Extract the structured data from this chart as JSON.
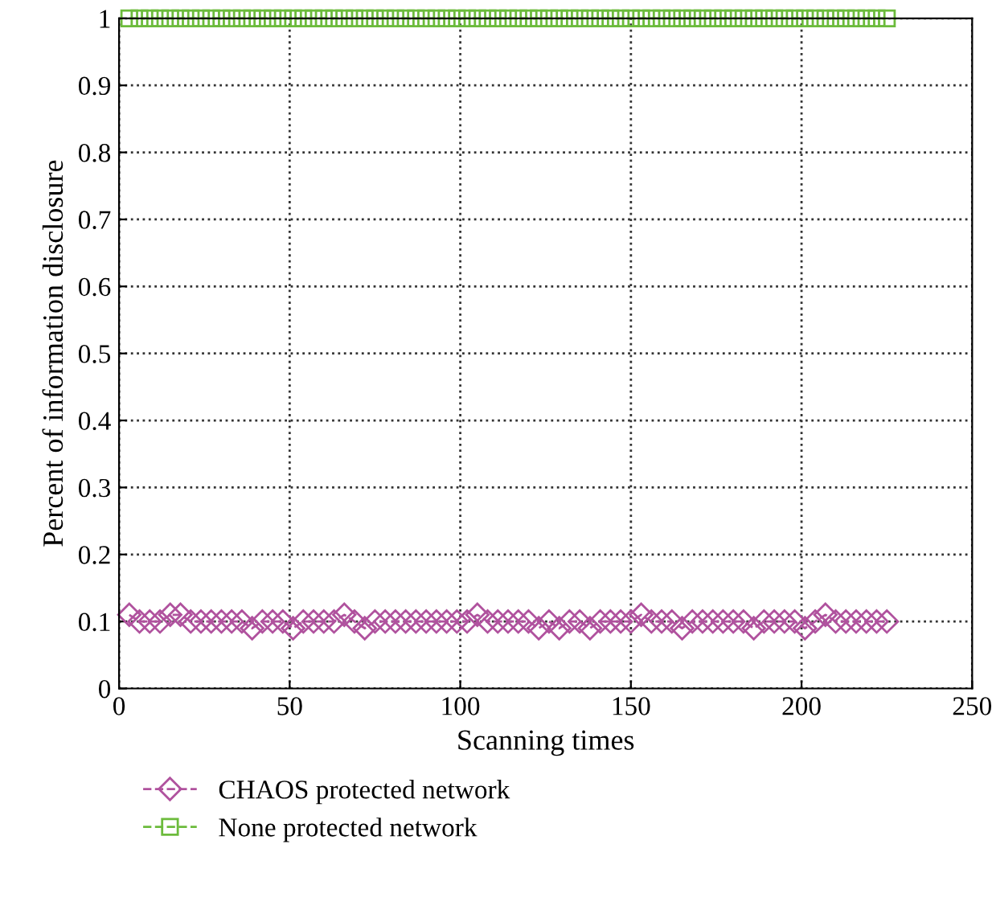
{
  "chart_data": {
    "type": "line",
    "xlabel": "Scanning times",
    "ylabel": "Percent of information disclosure",
    "x": [
      3,
      6,
      9,
      12,
      15,
      18,
      21,
      24,
      27,
      30,
      33,
      36,
      39,
      42,
      45,
      48,
      51,
      54,
      57,
      60,
      63,
      66,
      69,
      72,
      75,
      78,
      81,
      84,
      87,
      90,
      93,
      96,
      99,
      102,
      105,
      108,
      111,
      114,
      117,
      120,
      123,
      126,
      129,
      132,
      135,
      138,
      141,
      144,
      147,
      150,
      153,
      156,
      159,
      162,
      165,
      168,
      171,
      174,
      177,
      180,
      183,
      186,
      189,
      192,
      195,
      198,
      201,
      204,
      207,
      210,
      213,
      216,
      219,
      222,
      225
    ],
    "series": [
      {
        "name": "CHAOS protected network",
        "color": "#b0529e",
        "marker": "diamond",
        "values": [
          0.11,
          0.1,
          0.1,
          0.1,
          0.11,
          0.11,
          0.1,
          0.1,
          0.1,
          0.1,
          0.1,
          0.1,
          0.09,
          0.1,
          0.1,
          0.1,
          0.09,
          0.1,
          0.1,
          0.1,
          0.1,
          0.11,
          0.1,
          0.09,
          0.1,
          0.1,
          0.1,
          0.1,
          0.1,
          0.1,
          0.1,
          0.1,
          0.1,
          0.1,
          0.11,
          0.1,
          0.1,
          0.1,
          0.1,
          0.1,
          0.09,
          0.1,
          0.09,
          0.1,
          0.1,
          0.09,
          0.1,
          0.1,
          0.1,
          0.1,
          0.11,
          0.1,
          0.1,
          0.1,
          0.09,
          0.1,
          0.1,
          0.1,
          0.1,
          0.1,
          0.1,
          0.09,
          0.1,
          0.1,
          0.1,
          0.1,
          0.09,
          0.1,
          0.11,
          0.1,
          0.1,
          0.1,
          0.1,
          0.1,
          0.1
        ]
      },
      {
        "name": "None protected network",
        "color": "#6cbb3c",
        "marker": "square",
        "values": [
          1,
          1,
          1,
          1,
          1,
          1,
          1,
          1,
          1,
          1,
          1,
          1,
          1,
          1,
          1,
          1,
          1,
          1,
          1,
          1,
          1,
          1,
          1,
          1,
          1,
          1,
          1,
          1,
          1,
          1,
          1,
          1,
          1,
          1,
          1,
          1,
          1,
          1,
          1,
          1,
          1,
          1,
          1,
          1,
          1,
          1,
          1,
          1,
          1,
          1,
          1,
          1,
          1,
          1,
          1,
          1,
          1,
          1,
          1,
          1,
          1,
          1,
          1,
          1,
          1,
          1,
          1,
          1,
          1,
          1,
          1,
          1,
          1,
          1,
          1
        ]
      }
    ],
    "xlim": [
      0,
      250
    ],
    "xticks": [
      0,
      50,
      100,
      150,
      200,
      250
    ],
    "ylim": [
      0,
      1
    ],
    "yticks": [
      0,
      0.1,
      0.2,
      0.3,
      0.4,
      0.5,
      0.6,
      0.7,
      0.8,
      0.9,
      1
    ],
    "grid": true,
    "legend": "bottom left",
    "line_style": "dashed"
  }
}
